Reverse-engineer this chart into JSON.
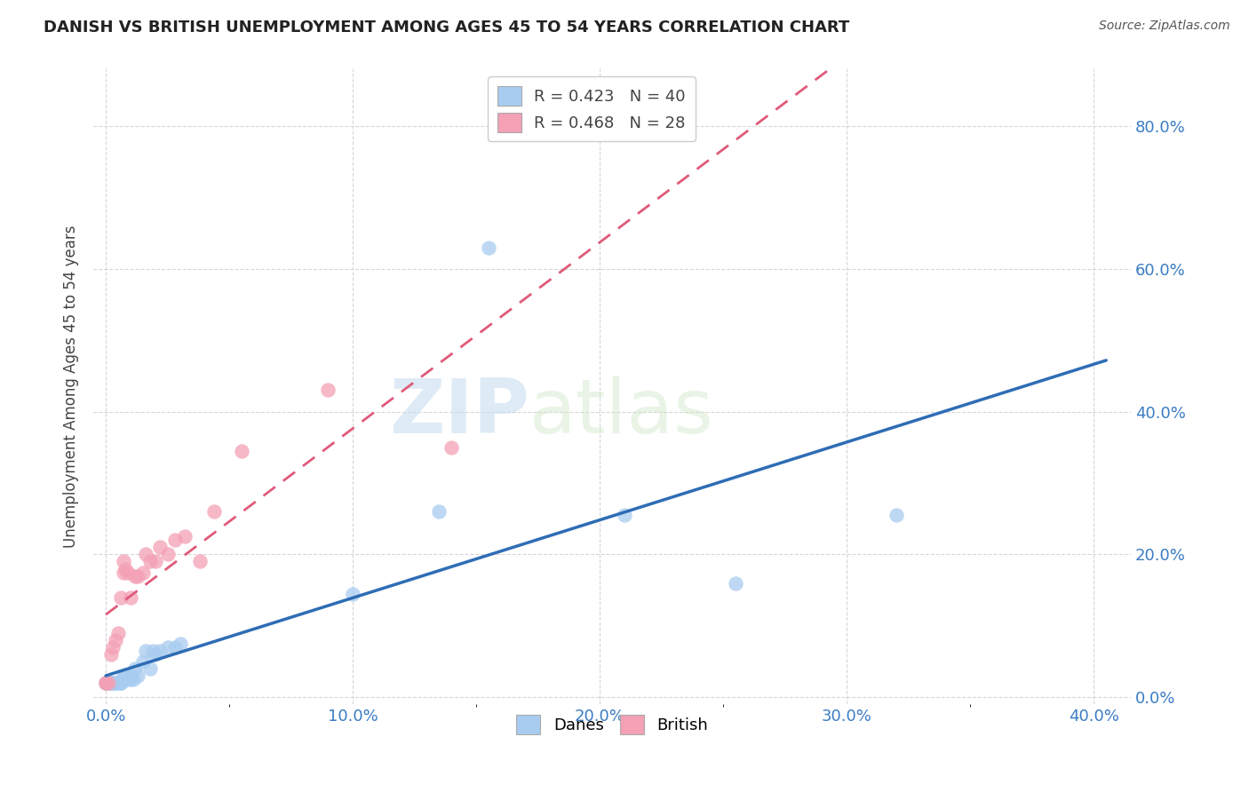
{
  "title": "DANISH VS BRITISH UNEMPLOYMENT AMONG AGES 45 TO 54 YEARS CORRELATION CHART",
  "source": "Source: ZipAtlas.com",
  "xlabel_ticks": [
    "0.0%",
    "",
    "",
    "",
    "",
    "10.0%",
    "",
    "",
    "",
    "",
    "20.0%",
    "",
    "",
    "",
    "",
    "30.0%",
    "",
    "",
    "",
    "",
    "40.0%"
  ],
  "xlabel_tick_vals": [
    0.0,
    0.02,
    0.04,
    0.06,
    0.08,
    0.1,
    0.12,
    0.14,
    0.16,
    0.18,
    0.2,
    0.22,
    0.24,
    0.26,
    0.28,
    0.3,
    0.32,
    0.34,
    0.36,
    0.38,
    0.4
  ],
  "ylabel": "Unemployment Among Ages 45 to 54 years",
  "xlim": [
    -0.005,
    0.415
  ],
  "ylim": [
    -0.01,
    0.88
  ],
  "danes_color": "#A8CCF0",
  "british_color": "#F4A0B5",
  "danes_line_color": "#2E6DB5",
  "british_line_color": "#E05A7A",
  "legend_R_danes": "0.423",
  "legend_N_danes": "40",
  "legend_R_british": "0.468",
  "legend_N_british": "28",
  "watermark_zip": "ZIP",
  "watermark_atlas": "atlas",
  "danes_x": [
    0.0,
    0.001,
    0.001,
    0.001,
    0.002,
    0.002,
    0.003,
    0.003,
    0.004,
    0.004,
    0.005,
    0.005,
    0.006,
    0.006,
    0.007,
    0.007,
    0.008,
    0.008,
    0.009,
    0.009,
    0.01,
    0.01,
    0.011,
    0.012,
    0.013,
    0.015,
    0.016,
    0.018,
    0.019,
    0.02,
    0.022,
    0.025,
    0.028,
    0.03,
    0.1,
    0.135,
    0.155,
    0.21,
    0.255,
    0.32
  ],
  "danes_y": [
    0.02,
    0.02,
    0.02,
    0.02,
    0.02,
    0.02,
    0.02,
    0.02,
    0.02,
    0.02,
    0.02,
    0.02,
    0.02,
    0.02,
    0.025,
    0.03,
    0.025,
    0.03,
    0.025,
    0.03,
    0.025,
    0.03,
    0.025,
    0.04,
    0.03,
    0.05,
    0.065,
    0.04,
    0.065,
    0.06,
    0.065,
    0.07,
    0.07,
    0.075,
    0.145,
    0.26,
    0.63,
    0.255,
    0.16,
    0.255
  ],
  "british_x": [
    0.0,
    0.0,
    0.001,
    0.002,
    0.003,
    0.004,
    0.005,
    0.006,
    0.007,
    0.007,
    0.008,
    0.009,
    0.01,
    0.012,
    0.013,
    0.015,
    0.016,
    0.018,
    0.02,
    0.022,
    0.025,
    0.028,
    0.032,
    0.038,
    0.044,
    0.055,
    0.09,
    0.14
  ],
  "british_y": [
    0.02,
    0.02,
    0.02,
    0.06,
    0.07,
    0.08,
    0.09,
    0.14,
    0.175,
    0.19,
    0.18,
    0.175,
    0.14,
    0.17,
    0.17,
    0.175,
    0.2,
    0.19,
    0.19,
    0.21,
    0.2,
    0.22,
    0.225,
    0.19,
    0.26,
    0.345,
    0.43,
    0.35
  ]
}
